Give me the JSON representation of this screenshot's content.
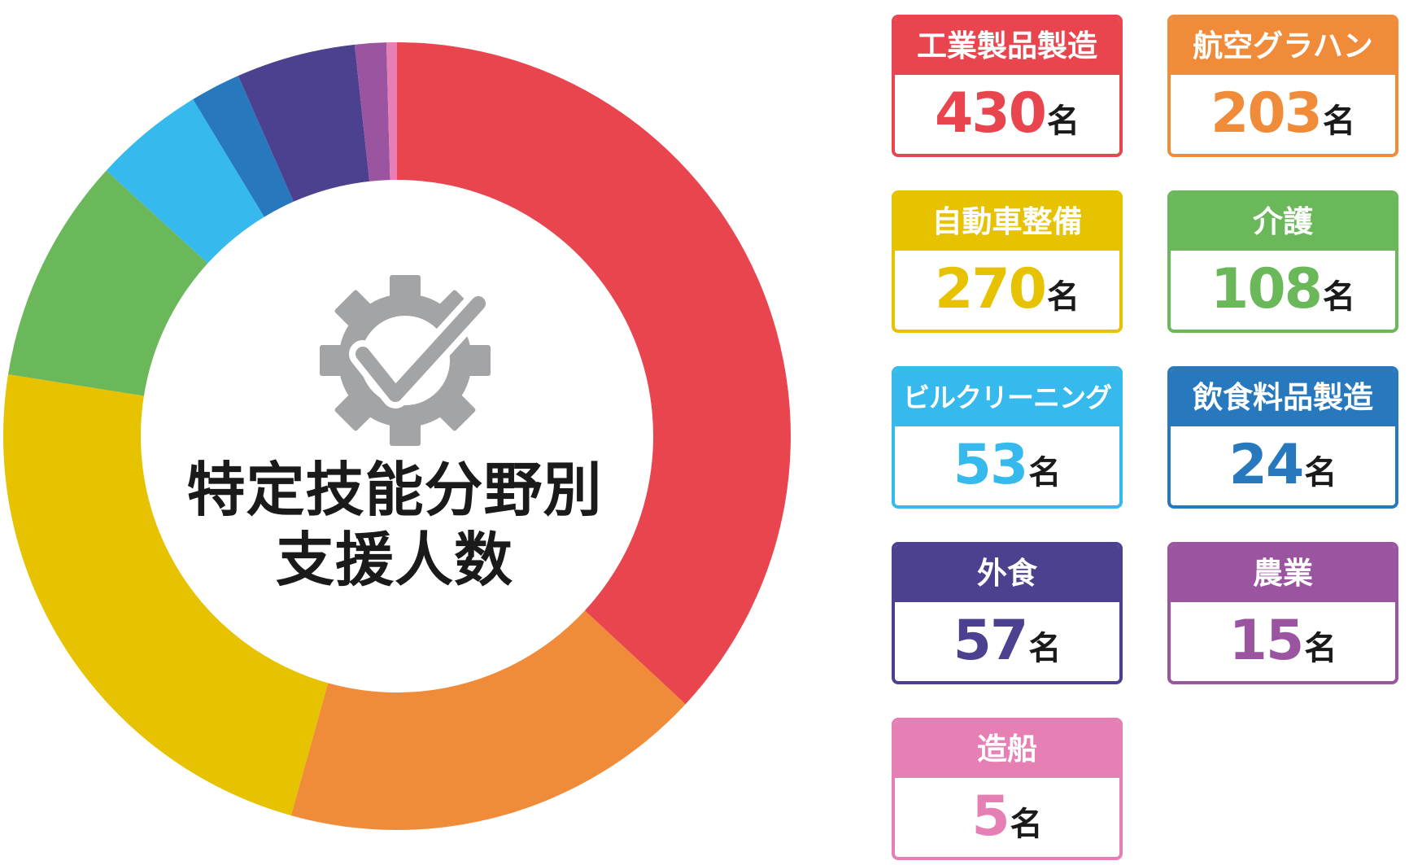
{
  "chart_data": {
    "type": "pie",
    "title": "特定技能分野別支援人数",
    "title_lines": [
      "特定技能分野別",
      "支援人数"
    ],
    "unit": "名",
    "categories": [
      "工業製品製造",
      "航空グラハン",
      "自動車整備",
      "介護",
      "ビルクリーニング",
      "飲食料品製造",
      "外食",
      "農業",
      "造船"
    ],
    "values": [
      430,
      203,
      270,
      108,
      53,
      24,
      57,
      15,
      5
    ],
    "colors": [
      "#e8454e",
      "#f08c39",
      "#e6c200",
      "#6bb85a",
      "#36b9ec",
      "#2878be",
      "#4b418e",
      "#9b55a0",
      "#e680b4"
    ]
  },
  "center_icon": "gear-check-icon",
  "legend_cards": [
    {
      "label": "工業製品製造",
      "value": "430",
      "unit": "名",
      "color": "#e8454e"
    },
    {
      "label": "航空グラハン",
      "value": "203",
      "unit": "名",
      "color": "#f08c39"
    },
    {
      "label": "自動車整備",
      "value": "270",
      "unit": "名",
      "color": "#e6c200"
    },
    {
      "label": "介護",
      "value": "108",
      "unit": "名",
      "color": "#6bb85a"
    },
    {
      "label": "ビルクリーニング",
      "value": "53",
      "unit": "名",
      "color": "#36b9ec"
    },
    {
      "label": "飲食料品製造",
      "value": "24",
      "unit": "名",
      "color": "#2878be"
    },
    {
      "label": "外食",
      "value": "57",
      "unit": "名",
      "color": "#4b418e"
    },
    {
      "label": "農業",
      "value": "15",
      "unit": "名",
      "color": "#9b55a0"
    },
    {
      "label": "造船",
      "value": "5",
      "unit": "名",
      "color": "#e680b4"
    }
  ]
}
